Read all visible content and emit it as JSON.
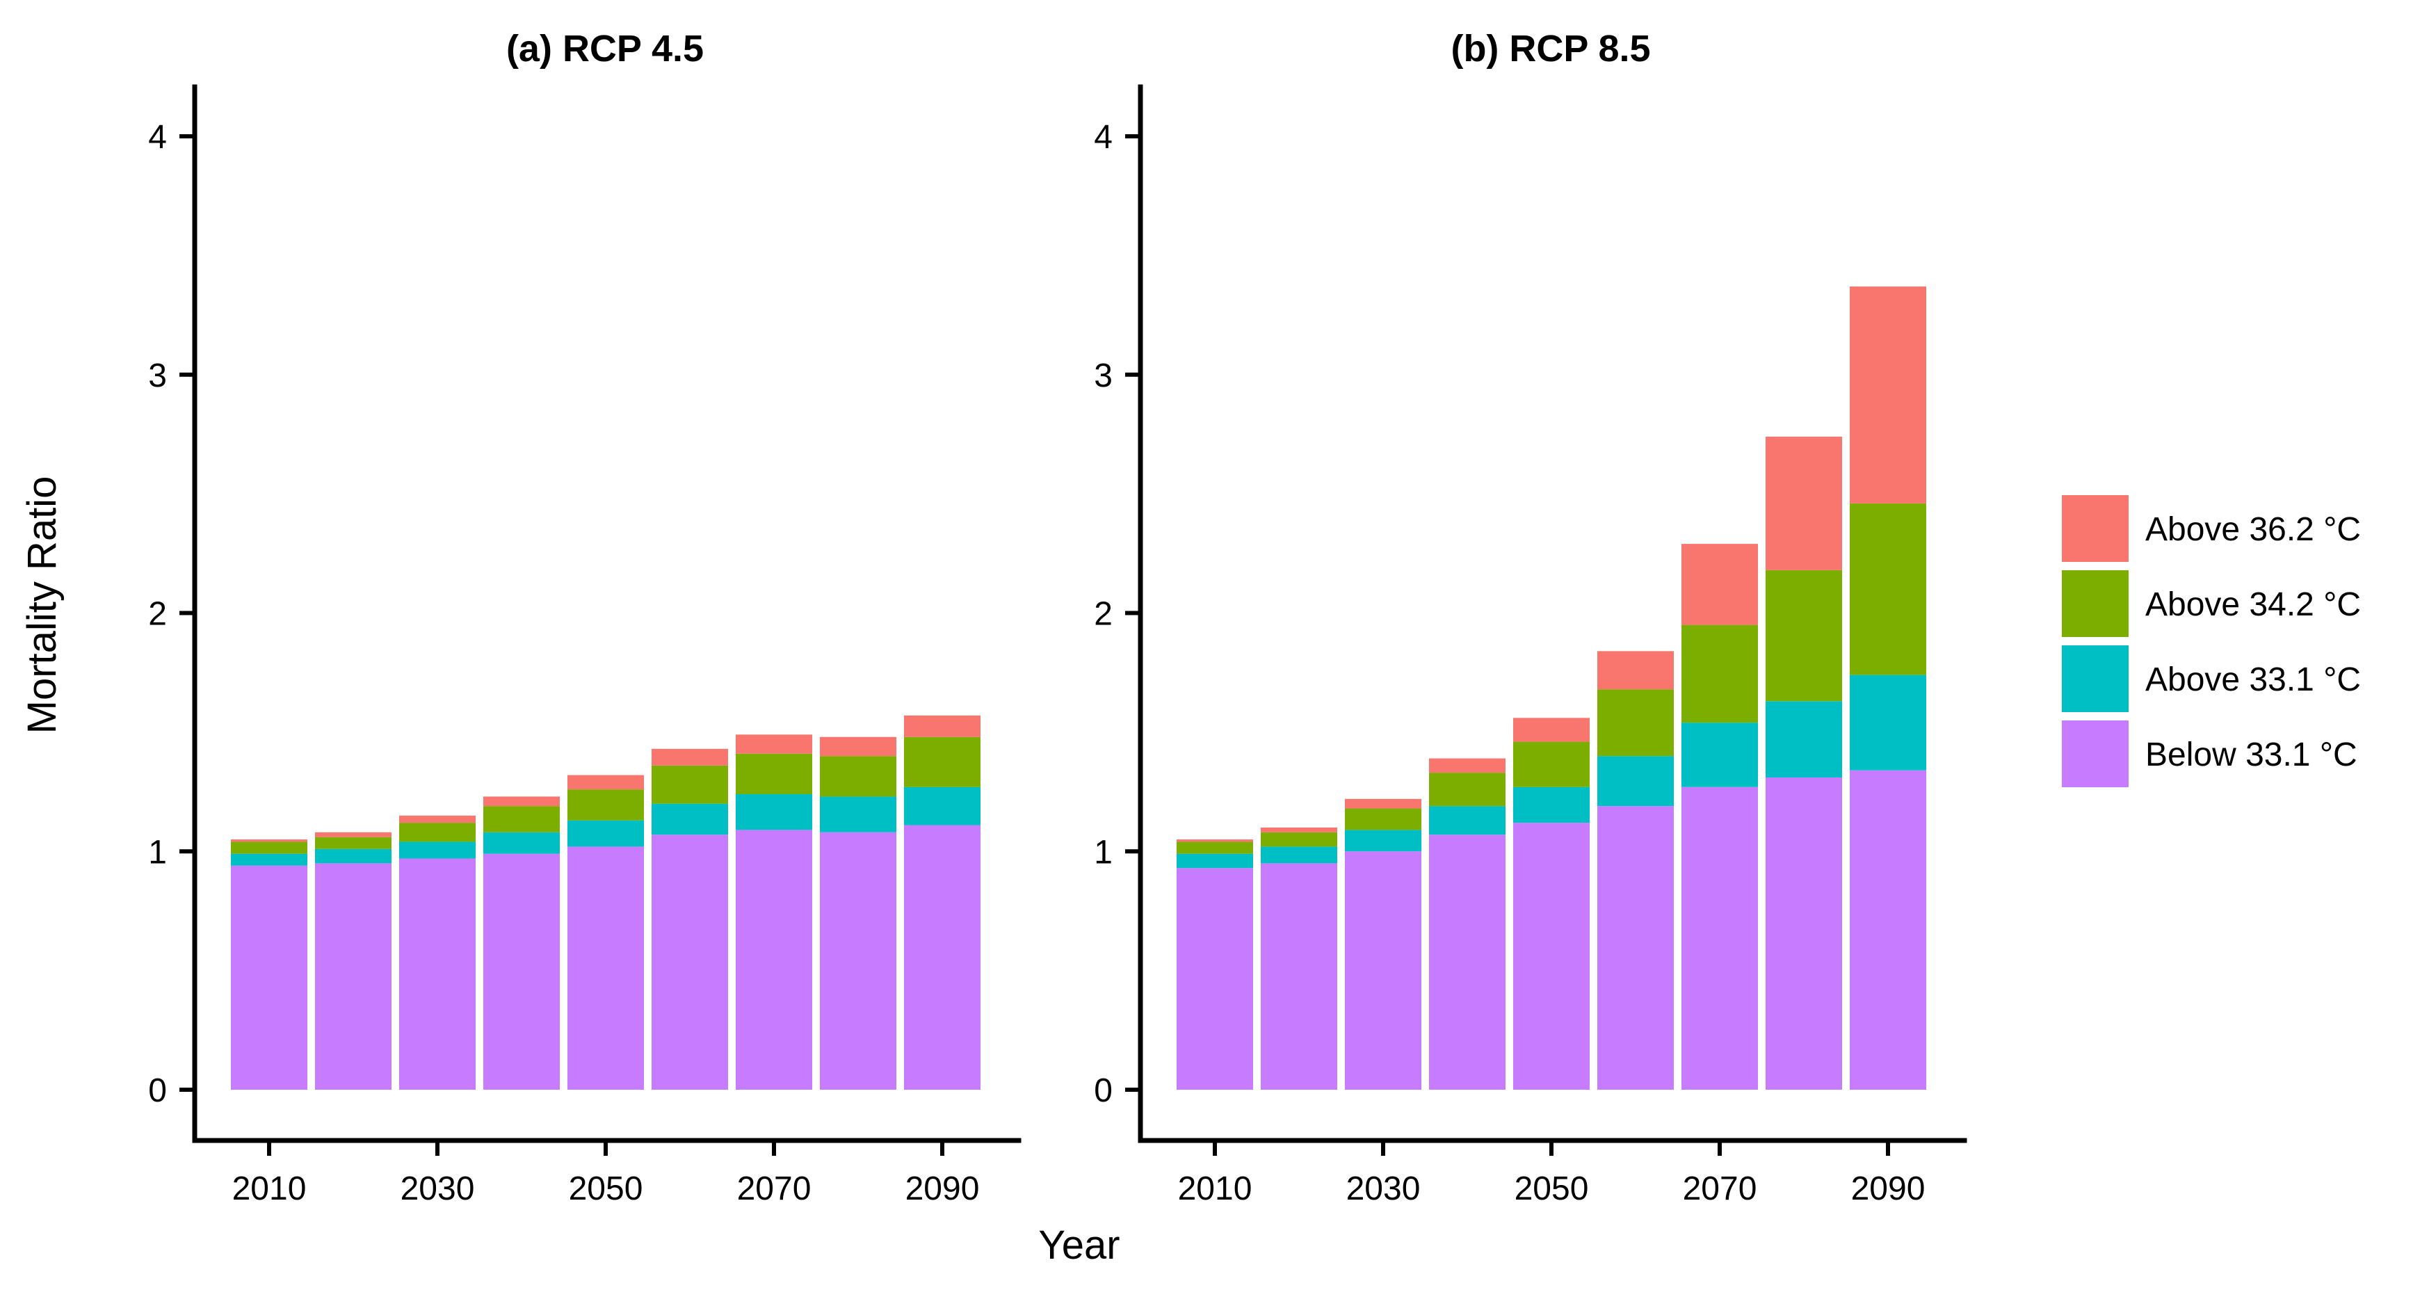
{
  "chart_data": [
    {
      "type": "bar",
      "stacked": true,
      "title": "(a) RCP 4.5",
      "xlabel": "Year",
      "ylabel": "Mortality Ratio",
      "ylim": [
        0,
        4
      ],
      "yticks": [
        "0",
        "1",
        "2",
        "3",
        "4"
      ],
      "xticks": [
        "2010",
        "2030",
        "2050",
        "2070",
        "2090"
      ],
      "categories": [
        2010,
        2020,
        2030,
        2040,
        2050,
        2060,
        2070,
        2080,
        2090
      ],
      "grid": false,
      "series": [
        {
          "name": "Below 33.1 °C",
          "color": "#C77CFF",
          "values": [
            0.94,
            0.95,
            0.97,
            0.99,
            1.02,
            1.07,
            1.09,
            1.08,
            1.11
          ]
        },
        {
          "name": "Above 33.1 °C",
          "color": "#00BFC4",
          "values": [
            0.05,
            0.06,
            0.07,
            0.09,
            0.11,
            0.13,
            0.15,
            0.15,
            0.16
          ]
        },
        {
          "name": "Above 34.2 °C",
          "color": "#7CAE00",
          "values": [
            0.05,
            0.05,
            0.08,
            0.11,
            0.13,
            0.16,
            0.17,
            0.17,
            0.21
          ]
        },
        {
          "name": "Above 36.2 °C",
          "color": "#F8766D",
          "values": [
            0.01,
            0.02,
            0.03,
            0.04,
            0.06,
            0.07,
            0.08,
            0.08,
            0.09
          ]
        }
      ]
    },
    {
      "type": "bar",
      "stacked": true,
      "title": "(b) RCP 8.5",
      "xlabel": "Year",
      "ylabel": "Mortality Ratio",
      "ylim": [
        0,
        4
      ],
      "yticks": [
        "0",
        "1",
        "2",
        "3",
        "4"
      ],
      "xticks": [
        "2010",
        "2030",
        "2050",
        "2070",
        "2090"
      ],
      "categories": [
        2010,
        2020,
        2030,
        2040,
        2050,
        2060,
        2070,
        2080,
        2090
      ],
      "grid": false,
      "series": [
        {
          "name": "Below 33.1 °C",
          "color": "#C77CFF",
          "values": [
            0.93,
            0.95,
            1.0,
            1.07,
            1.12,
            1.19,
            1.27,
            1.31,
            1.34
          ]
        },
        {
          "name": "Above 33.1 °C",
          "color": "#00BFC4",
          "values": [
            0.06,
            0.07,
            0.09,
            0.12,
            0.15,
            0.21,
            0.27,
            0.32,
            0.4
          ]
        },
        {
          "name": "Above 34.2 °C",
          "color": "#7CAE00",
          "values": [
            0.05,
            0.06,
            0.09,
            0.14,
            0.19,
            0.28,
            0.41,
            0.55,
            0.72
          ]
        },
        {
          "name": "Above 36.2 °C",
          "color": "#F8766D",
          "values": [
            0.01,
            0.02,
            0.04,
            0.06,
            0.1,
            0.16,
            0.34,
            0.56,
            0.91
          ]
        }
      ]
    }
  ],
  "legend": {
    "position": "right",
    "items": [
      {
        "label": "Above 36.2 °C",
        "color": "#F8766D"
      },
      {
        "label": "Above 34.2 °C",
        "color": "#7CAE00"
      },
      {
        "label": "Above 33.1 °C",
        "color": "#00BFC4"
      },
      {
        "label": "Below 33.1 °C",
        "color": "#C77CFF"
      }
    ]
  },
  "shared": {
    "ylabel": "Mortality Ratio",
    "xlabel": "Year"
  }
}
